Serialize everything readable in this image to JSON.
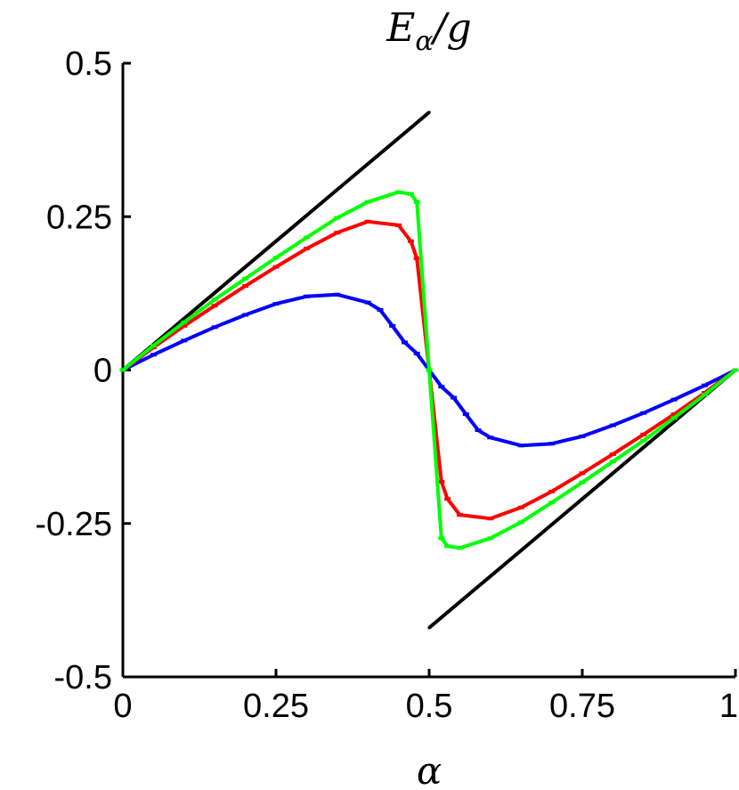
{
  "chart_data": {
    "type": "line",
    "title": "E_α/g",
    "title_parts": {
      "main": "E",
      "sub": "α",
      "rest": "/g"
    },
    "xlabel": "α",
    "ylabel": "",
    "xlim": [
      0,
      1
    ],
    "ylim": [
      -0.5,
      0.5
    ],
    "xticks": [
      0,
      0.25,
      0.5,
      0.75,
      1
    ],
    "xtick_labels": [
      "0",
      "0.25",
      "0.5",
      "0.75",
      "1"
    ],
    "yticks": [
      -0.5,
      -0.25,
      0,
      0.25,
      0.5
    ],
    "ytick_labels": [
      "-0.5",
      "-0.25",
      "0",
      "0.25",
      "0.5"
    ],
    "grid": false,
    "series": [
      {
        "color": "#000000",
        "x": [
          0,
          0.05,
          0.1,
          0.15,
          0.2,
          0.25,
          0.3,
          0.35,
          0.4,
          0.45,
          0.475,
          0.5
        ],
        "y": [
          0,
          0.042,
          0.084,
          0.126,
          0.168,
          0.21,
          0.252,
          0.294,
          0.336,
          0.378,
          0.399,
          0.42
        ]
      },
      {
        "color": "#000000",
        "x": [
          0.5,
          0.525,
          0.55,
          0.6,
          0.65,
          0.7,
          0.75,
          0.8,
          0.85,
          0.9,
          0.95,
          1
        ],
        "y": [
          -0.42,
          -0.399,
          -0.378,
          -0.336,
          -0.294,
          -0.252,
          -0.21,
          -0.168,
          -0.126,
          -0.084,
          -0.042,
          0
        ]
      },
      {
        "color": "#0000ff",
        "x": [
          0,
          0.05,
          0.1,
          0.15,
          0.2,
          0.25,
          0.3,
          0.35,
          0.4,
          0.42,
          0.44,
          0.46,
          0.48,
          0.5,
          0.52,
          0.54,
          0.56,
          0.58,
          0.6,
          0.65,
          0.7,
          0.75,
          0.8,
          0.85,
          0.9,
          0.95,
          1
        ],
        "y": [
          0,
          0.025,
          0.048,
          0.07,
          0.09,
          0.108,
          0.12,
          0.123,
          0.11,
          0.098,
          0.072,
          0.045,
          0.027,
          0,
          -0.027,
          -0.045,
          -0.072,
          -0.098,
          -0.11,
          -0.123,
          -0.12,
          -0.108,
          -0.09,
          -0.07,
          -0.048,
          -0.025,
          0
        ]
      },
      {
        "color": "#ff0000",
        "x": [
          0,
          0.05,
          0.1,
          0.15,
          0.2,
          0.25,
          0.3,
          0.35,
          0.4,
          0.45,
          0.47,
          0.48,
          0.5,
          0.52,
          0.53,
          0.55,
          0.6,
          0.65,
          0.7,
          0.75,
          0.8,
          0.85,
          0.9,
          0.95,
          1
        ],
        "y": [
          0,
          0.037,
          0.072,
          0.105,
          0.137,
          0.168,
          0.198,
          0.224,
          0.242,
          0.236,
          0.21,
          0.182,
          0,
          -0.182,
          -0.21,
          -0.236,
          -0.242,
          -0.224,
          -0.198,
          -0.168,
          -0.137,
          -0.105,
          -0.072,
          -0.037,
          0
        ]
      },
      {
        "color": "#00ff00",
        "x": [
          0,
          0.05,
          0.1,
          0.15,
          0.2,
          0.25,
          0.3,
          0.35,
          0.4,
          0.45,
          0.47,
          0.48,
          0.5,
          0.52,
          0.53,
          0.55,
          0.6,
          0.65,
          0.7,
          0.75,
          0.8,
          0.85,
          0.9,
          0.95,
          1
        ],
        "y": [
          0,
          0.04,
          0.078,
          0.115,
          0.149,
          0.183,
          0.216,
          0.248,
          0.274,
          0.29,
          0.287,
          0.274,
          0,
          -0.274,
          -0.287,
          -0.29,
          -0.274,
          -0.248,
          -0.216,
          -0.183,
          -0.149,
          -0.115,
          -0.078,
          -0.04,
          0
        ]
      }
    ]
  }
}
